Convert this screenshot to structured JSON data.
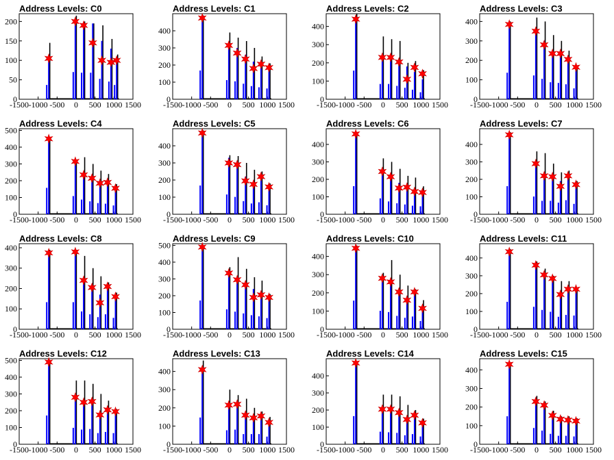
{
  "colors": {
    "envelope": "#000000",
    "histogram": "#0000ff",
    "marker": "#ff0000"
  },
  "chart_data": [
    {
      "type": "bar",
      "title": "Address Levels: C0",
      "xlim": [
        -1500,
        1500
      ],
      "ylim": [
        0,
        220
      ],
      "yticks": [
        0,
        50,
        100,
        150,
        200
      ],
      "xticks": [
        -1500,
        -1000,
        -500,
        0,
        500,
        1000,
        1500
      ],
      "x": [
        -720,
        -20,
        200,
        440,
        680,
        920,
        1070
      ],
      "env": [
        145,
        215,
        200,
        195,
        190,
        155,
        115
      ],
      "peak": [
        105,
        200,
        195,
        195,
        150,
        130,
        105
      ],
      "markers": [
        105,
        200,
        190,
        145,
        100,
        95,
        100
      ]
    },
    {
      "type": "bar",
      "title": "Address Levels: C1",
      "xlim": [
        -1500,
        1500
      ],
      "ylim": [
        0,
        500
      ],
      "yticks": [
        0,
        100,
        200,
        300,
        400
      ],
      "xticks": [
        -1500,
        -1000,
        -500,
        0,
        500,
        1000,
        1500
      ],
      "x": [
        -720,
        -20,
        200,
        420,
        630,
        830,
        1040
      ],
      "env": [
        490,
        390,
        360,
        340,
        300,
        250,
        210
      ],
      "peak": [
        480,
        320,
        300,
        260,
        220,
        200,
        180
      ],
      "markers": [
        475,
        315,
        270,
        235,
        180,
        205,
        185
      ]
    },
    {
      "type": "bar",
      "title": "Address Levels: C2",
      "xlim": [
        -1500,
        1500
      ],
      "ylim": [
        0,
        470
      ],
      "yticks": [
        0,
        100,
        200,
        300,
        400
      ],
      "xticks": [
        -1500,
        -1000,
        -500,
        0,
        500,
        1000,
        1500
      ],
      "x": [
        -720,
        -20,
        200,
        420,
        630,
        830,
        1040
      ],
      "env": [
        470,
        345,
        330,
        320,
        200,
        210,
        160
      ],
      "peak": [
        450,
        240,
        240,
        210,
        180,
        150,
        110
      ],
      "markers": [
        440,
        230,
        230,
        205,
        110,
        175,
        140
      ]
    },
    {
      "type": "bar",
      "title": "Address Levels: C3",
      "xlim": [
        -1500,
        1500
      ],
      "ylim": [
        0,
        440
      ],
      "yticks": [
        0,
        100,
        200,
        300,
        400
      ],
      "xticks": [
        -1500,
        -1000,
        -500,
        0,
        500,
        1000,
        1500
      ],
      "x": [
        -720,
        -20,
        200,
        420,
        630,
        830,
        1040
      ],
      "env": [
        400,
        420,
        400,
        330,
        300,
        250,
        170
      ],
      "peak": [
        390,
        350,
        300,
        250,
        240,
        220,
        160
      ],
      "markers": [
        385,
        350,
        280,
        235,
        235,
        205,
        165
      ]
    },
    {
      "type": "bar",
      "title": "Address Levels: C4",
      "xlim": [
        -1500,
        1500
      ],
      "ylim": [
        0,
        510
      ],
      "yticks": [
        0,
        100,
        200,
        300,
        400,
        500
      ],
      "xticks": [
        -1500,
        -1000,
        -500,
        0,
        500,
        1000,
        1500
      ],
      "x": [
        -720,
        -20,
        200,
        420,
        630,
        830,
        1040
      ],
      "env": [
        460,
        320,
        340,
        300,
        260,
        240,
        180
      ],
      "peak": [
        450,
        310,
        250,
        220,
        190,
        180,
        150
      ],
      "markers": [
        450,
        315,
        235,
        215,
        185,
        190,
        155
      ]
    },
    {
      "type": "bar",
      "title": "Address Levels: C5",
      "xlim": [
        -1500,
        1500
      ],
      "ylim": [
        0,
        500
      ],
      "yticks": [
        0,
        100,
        200,
        300,
        400
      ],
      "xticks": [
        -1500,
        -1000,
        -500,
        0,
        500,
        1000,
        1500
      ],
      "x": [
        -720,
        -20,
        200,
        420,
        630,
        830,
        1040
      ],
      "env": [
        490,
        345,
        340,
        300,
        260,
        250,
        180
      ],
      "peak": [
        480,
        330,
        290,
        220,
        180,
        200,
        150
      ],
      "markers": [
        475,
        300,
        290,
        195,
        175,
        220,
        160
      ]
    },
    {
      "type": "bar",
      "title": "Address Levels: C6",
      "xlim": [
        -1500,
        1500
      ],
      "ylim": [
        0,
        490
      ],
      "yticks": [
        0,
        100,
        200,
        300,
        400
      ],
      "xticks": [
        -1500,
        -1000,
        -500,
        0,
        500,
        1000,
        1500
      ],
      "x": [
        -720,
        -20,
        200,
        420,
        630,
        830,
        1040
      ],
      "env": [
        470,
        320,
        300,
        260,
        220,
        210,
        160
      ],
      "peak": [
        460,
        260,
        210,
        180,
        160,
        140,
        130
      ],
      "markers": [
        460,
        245,
        215,
        150,
        155,
        130,
        125
      ]
    },
    {
      "type": "bar",
      "title": "Address Levels: C7",
      "xlim": [
        -1500,
        1500
      ],
      "ylim": [
        0,
        490
      ],
      "yticks": [
        0,
        100,
        200,
        300,
        400
      ],
      "xticks": [
        -1500,
        -1000,
        -500,
        0,
        500,
        1000,
        1500
      ],
      "x": [
        -720,
        -20,
        200,
        420,
        630,
        830,
        1040
      ],
      "env": [
        470,
        360,
        350,
        290,
        240,
        250,
        190
      ],
      "peak": [
        460,
        290,
        220,
        220,
        190,
        230,
        170
      ],
      "markers": [
        455,
        290,
        220,
        215,
        160,
        220,
        170
      ]
    },
    {
      "type": "bar",
      "title": "Address Levels: C8",
      "xlim": [
        -1500,
        1500
      ],
      "ylim": [
        0,
        420
      ],
      "yticks": [
        0,
        100,
        200,
        300,
        400
      ],
      "xticks": [
        -1500,
        -1000,
        -500,
        0,
        500,
        1000,
        1500
      ],
      "x": [
        -720,
        -20,
        200,
        420,
        630,
        830,
        1040
      ],
      "env": [
        390,
        390,
        360,
        300,
        260,
        230,
        180
      ],
      "peak": [
        380,
        380,
        250,
        210,
        170,
        210,
        160
      ],
      "markers": [
        375,
        380,
        240,
        205,
        130,
        210,
        160
      ]
    },
    {
      "type": "bar",
      "title": "Address Levels: C9",
      "xlim": [
        -1500,
        1500
      ],
      "ylim": [
        0,
        510
      ],
      "yticks": [
        0,
        100,
        200,
        300,
        400,
        500
      ],
      "xticks": [
        -1500,
        -1000,
        -500,
        0,
        500,
        1000,
        1500
      ],
      "x": [
        -720,
        -20,
        200,
        420,
        630,
        830,
        1040
      ],
      "env": [
        500,
        370,
        430,
        360,
        310,
        290,
        210
      ],
      "peak": [
        490,
        340,
        300,
        270,
        240,
        220,
        190
      ],
      "markers": [
        490,
        335,
        295,
        265,
        190,
        205,
        190
      ]
    },
    {
      "type": "bar",
      "title": "Address Levels: C10",
      "xlim": [
        -1500,
        1500
      ],
      "ylim": [
        0,
        470
      ],
      "yticks": [
        0,
        100,
        200,
        300,
        400
      ],
      "xticks": [
        -1500,
        -1000,
        -500,
        0,
        500,
        1000,
        1500
      ],
      "x": [
        -720,
        -20,
        200,
        420,
        630,
        830,
        1040
      ],
      "env": [
        460,
        310,
        380,
        300,
        240,
        220,
        160
      ],
      "peak": [
        450,
        290,
        270,
        210,
        180,
        200,
        130
      ],
      "markers": [
        445,
        280,
        260,
        205,
        160,
        205,
        115
      ]
    },
    {
      "type": "bar",
      "title": "Address Levels: C11",
      "xlim": [
        -1500,
        1500
      ],
      "ylim": [
        0,
        480
      ],
      "yticks": [
        0,
        100,
        200,
        300,
        400
      ],
      "xticks": [
        -1500,
        -1000,
        -500,
        0,
        500,
        1000,
        1500
      ],
      "x": [
        -720,
        -20,
        200,
        420,
        630,
        830,
        1040
      ],
      "env": [
        450,
        380,
        340,
        300,
        270,
        270,
        230
      ],
      "peak": [
        440,
        360,
        310,
        280,
        200,
        230,
        220
      ],
      "markers": [
        435,
        360,
        305,
        285,
        195,
        225,
        225
      ]
    },
    {
      "type": "bar",
      "title": "Address Levels: C12",
      "xlim": [
        -1500,
        1500
      ],
      "ylim": [
        0,
        510
      ],
      "yticks": [
        0,
        100,
        200,
        300,
        400,
        500
      ],
      "xticks": [
        -1500,
        -1000,
        -500,
        0,
        500,
        1000,
        1500
      ],
      "x": [
        -720,
        -20,
        200,
        420,
        630,
        830,
        1040
      ],
      "env": [
        500,
        380,
        380,
        360,
        300,
        260,
        210
      ],
      "peak": [
        490,
        280,
        250,
        260,
        190,
        210,
        190
      ],
      "markers": [
        490,
        280,
        250,
        255,
        175,
        205,
        195
      ]
    },
    {
      "type": "bar",
      "title": "Address Levels: C13",
      "xlim": [
        -1500,
        1500
      ],
      "ylim": [
        0,
        470
      ],
      "yticks": [
        0,
        100,
        200,
        300,
        400
      ],
      "xticks": [
        -1500,
        -1000,
        -500,
        0,
        500,
        1000,
        1500
      ],
      "x": [
        -720,
        -20,
        200,
        420,
        630,
        830,
        1040
      ],
      "env": [
        460,
        300,
        270,
        250,
        200,
        180,
        150
      ],
      "peak": [
        420,
        220,
        230,
        160,
        160,
        160,
        120
      ],
      "markers": [
        410,
        215,
        220,
        160,
        145,
        155,
        120
      ]
    },
    {
      "type": "bar",
      "title": "Address Levels: C14",
      "xlim": [
        -1500,
        1500
      ],
      "ylim": [
        0,
        500
      ],
      "yticks": [
        0,
        100,
        200,
        300,
        400
      ],
      "xticks": [
        -1500,
        -1000,
        -500,
        0,
        500,
        1000,
        1500
      ],
      "x": [
        -720,
        -20,
        200,
        420,
        630,
        830,
        1040
      ],
      "env": [
        480,
        290,
        290,
        280,
        230,
        200,
        150
      ],
      "peak": [
        470,
        210,
        200,
        190,
        150,
        170,
        130
      ],
      "markers": [
        475,
        205,
        205,
        185,
        145,
        170,
        125
      ]
    },
    {
      "type": "bar",
      "title": "Address Levels: C15",
      "xlim": [
        -1500,
        1500
      ],
      "ylim": [
        0,
        460
      ],
      "yticks": [
        0,
        100,
        200,
        300,
        400
      ],
      "xticks": [
        -1500,
        -1000,
        -500,
        0,
        500,
        1000,
        1500
      ],
      "x": [
        -720,
        -20,
        200,
        420,
        630,
        830,
        1040
      ],
      "env": [
        440,
        260,
        230,
        180,
        150,
        150,
        140
      ],
      "peak": [
        430,
        250,
        210,
        160,
        130,
        130,
        120
      ],
      "markers": [
        430,
        230,
        210,
        155,
        135,
        130,
        125
      ]
    }
  ]
}
